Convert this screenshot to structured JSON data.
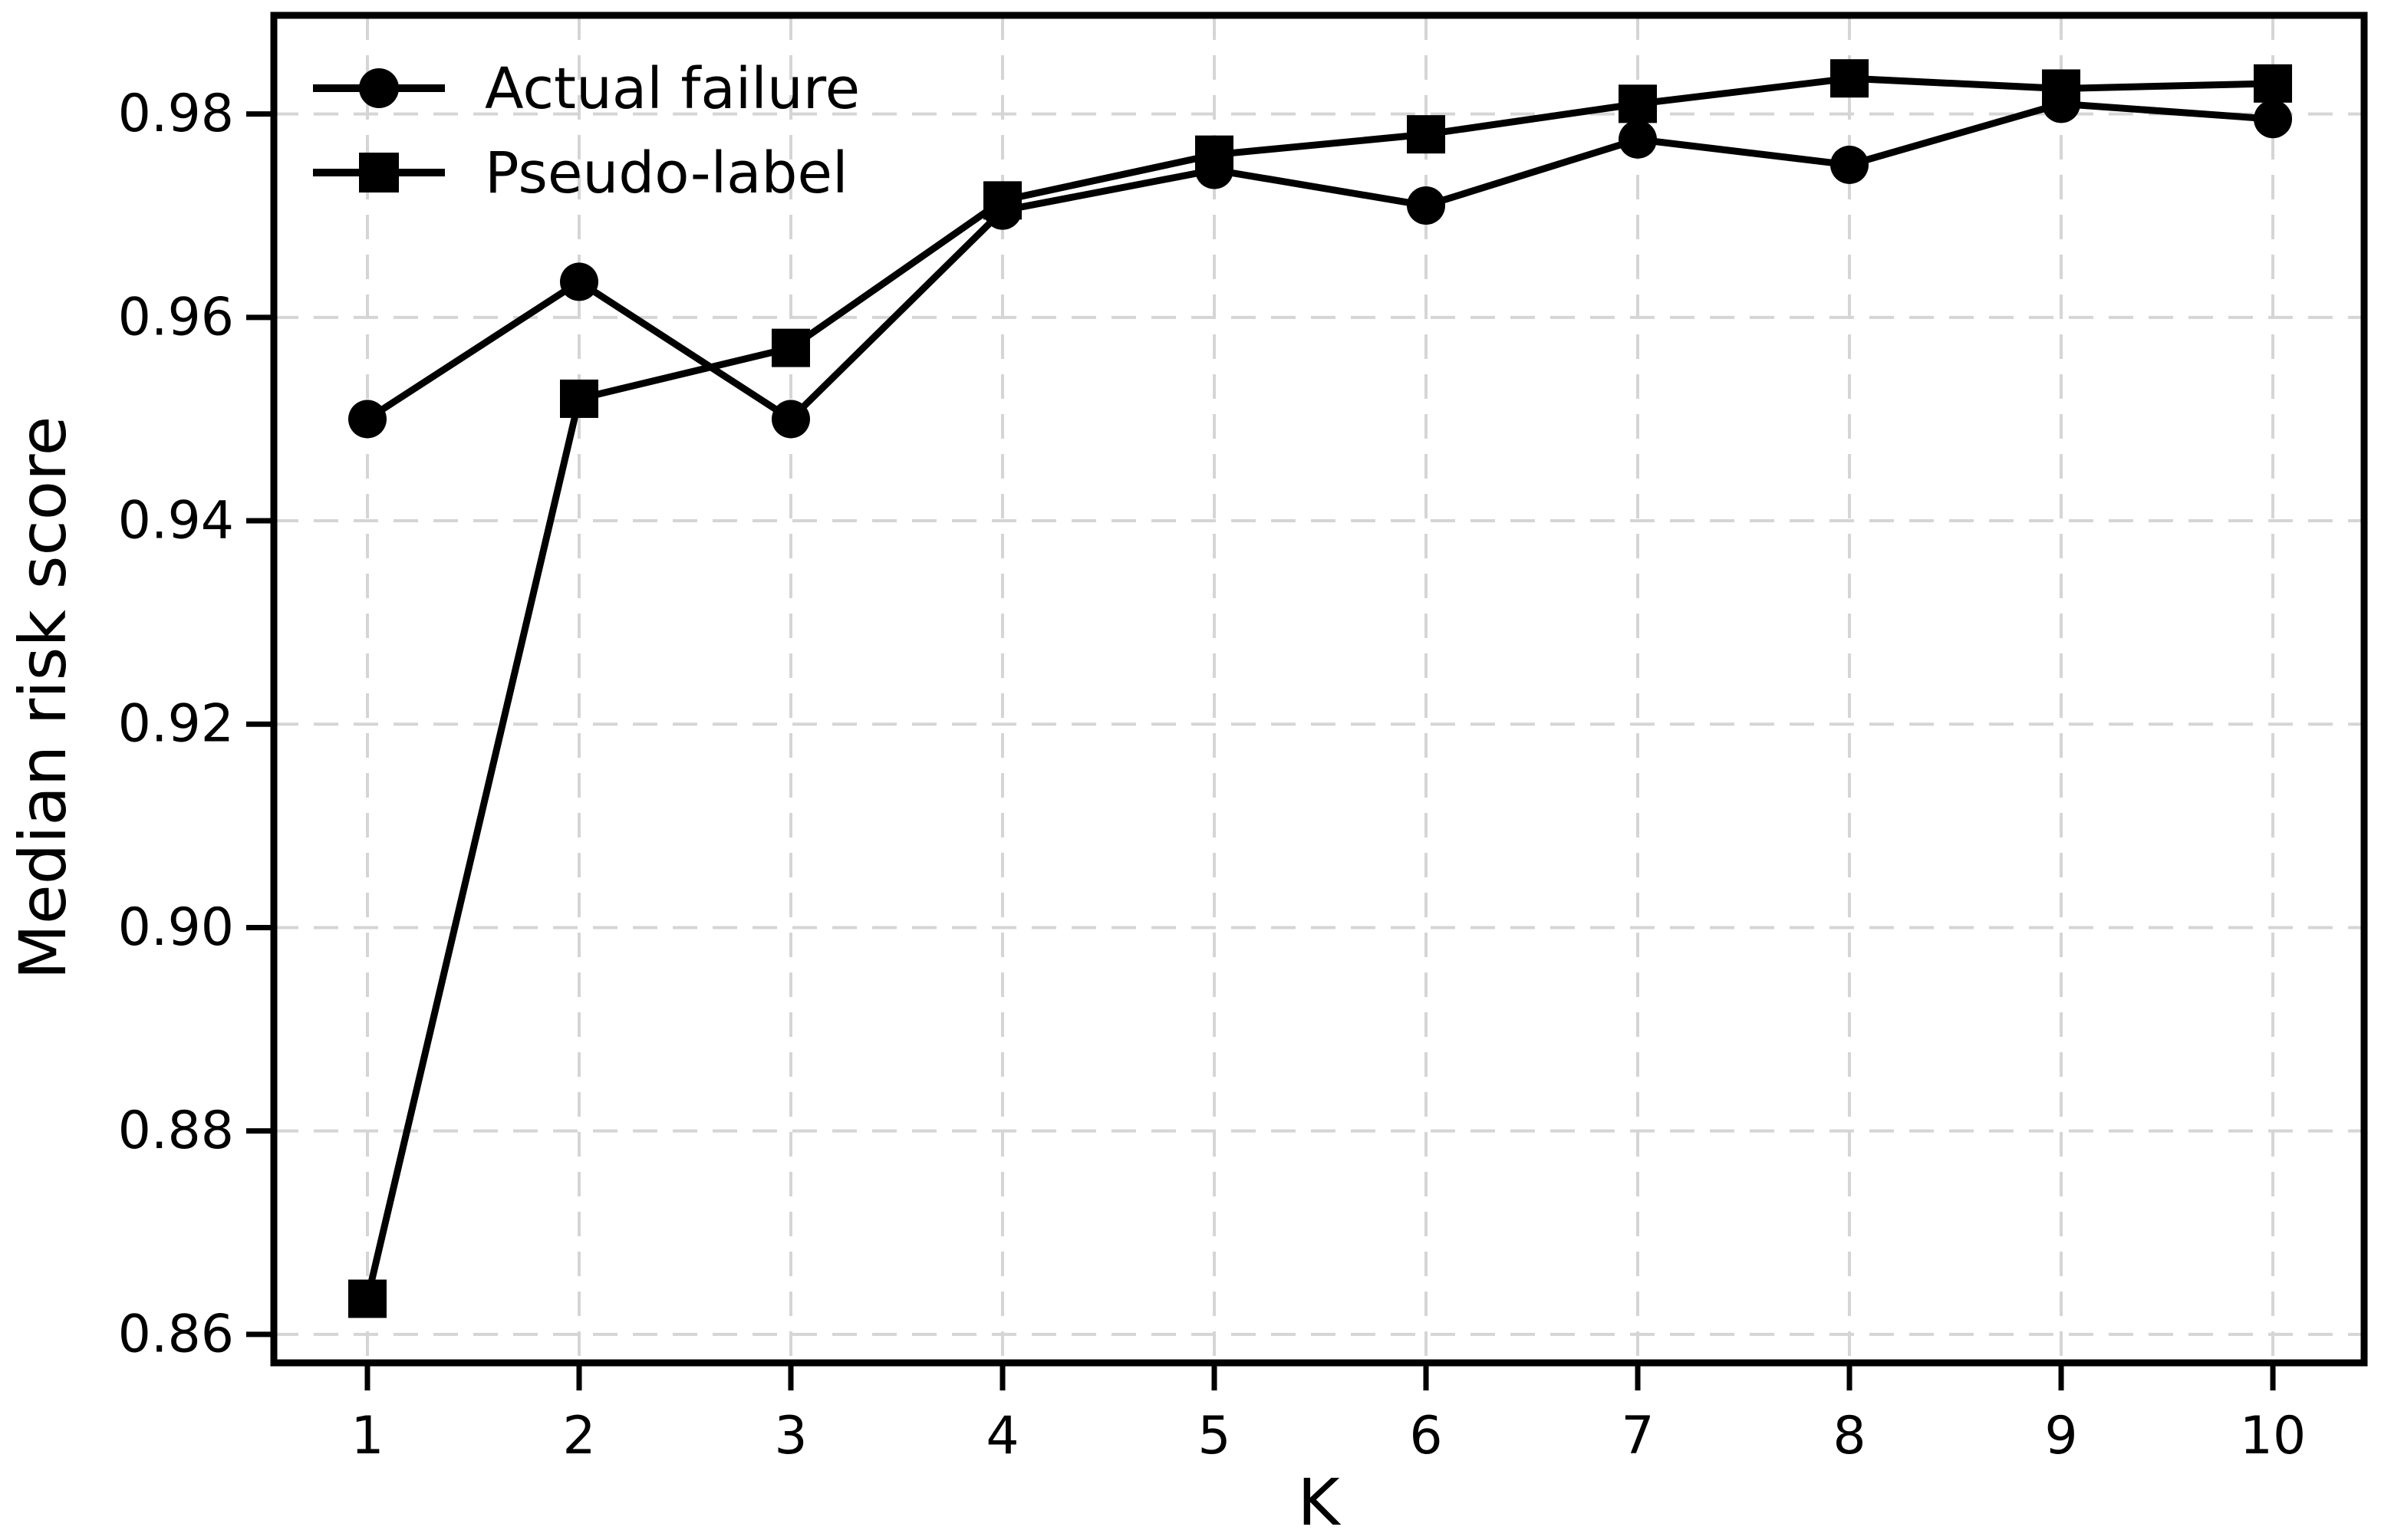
{
  "chart_data": {
    "type": "line",
    "title": "",
    "xlabel": "K",
    "ylabel": "Median risk score",
    "x": [
      1,
      2,
      3,
      4,
      5,
      6,
      7,
      8,
      9,
      10
    ],
    "series": [
      {
        "name": "Actual failure",
        "marker": "circle",
        "color": "#000000",
        "values": [
          0.95,
          0.9635,
          0.95,
          0.9705,
          0.9745,
          0.971,
          0.9775,
          0.975,
          0.981,
          0.9795
        ]
      },
      {
        "name": "Pseudo-label",
        "marker": "square",
        "color": "#000000",
        "values": [
          0.8635,
          0.952,
          0.957,
          0.9715,
          0.976,
          0.978,
          0.981,
          0.9835,
          0.9825,
          0.983
        ]
      }
    ],
    "x_ticks": [
      1,
      2,
      3,
      4,
      5,
      6,
      7,
      8,
      9,
      10
    ],
    "y_ticks": [
      0.86,
      0.88,
      0.9,
      0.92,
      0.94,
      0.96,
      0.98
    ],
    "xlim": [
      0.558,
      10.431
    ],
    "ylim": [
      0.8572,
      0.9897
    ],
    "grid": true,
    "grid_style": "dashed",
    "legend_position": "upper left",
    "legend_frame": false,
    "colors": {
      "line": "#000000",
      "grid": "#d5d5d5",
      "background": "#ffffff",
      "text": "#000000"
    }
  }
}
